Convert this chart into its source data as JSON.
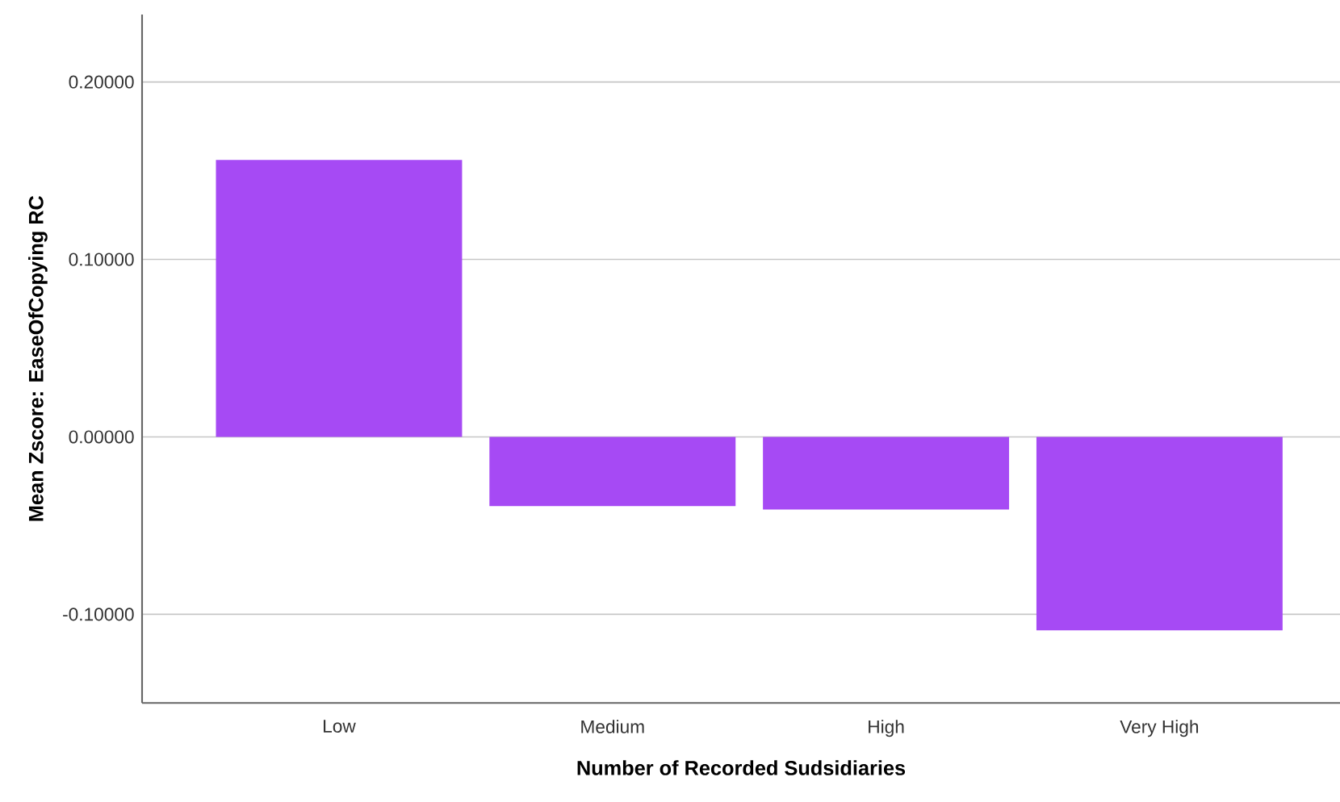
{
  "chart_data": {
    "type": "bar",
    "xlabel": "Number  of Recorded Sudsidiaries",
    "ylabel": "Mean Zscore:  EaseOfCopying RC",
    "categories": [
      "Low",
      "Medium",
      "High",
      "Very High"
    ],
    "values": [
      0.156,
      -0.039,
      -0.041,
      -0.109
    ],
    "color": "#a64af4",
    "ylim": [
      -0.15,
      0.238
    ],
    "yticks": [
      {
        "value": -0.1,
        "label": "-0.10000"
      },
      {
        "value": 0,
        "label": "0.00000"
      },
      {
        "value": 0.1,
        "label": "0.10000"
      },
      {
        "value": 0.2,
        "label": "0.20000"
      }
    ],
    "grid": "y"
  }
}
